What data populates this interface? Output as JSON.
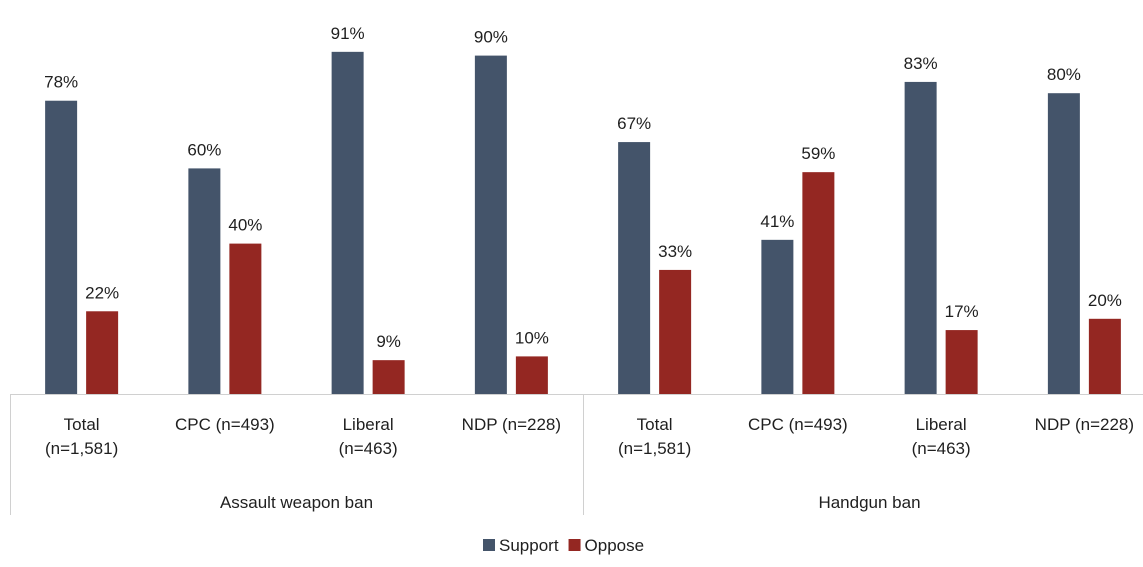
{
  "chart_data": {
    "type": "bar",
    "groups": [
      {
        "name": "Assault weapon ban",
        "categories": [
          {
            "label_lines": [
              "Total",
              "(n=1,581)"
            ],
            "values": [
              78,
              22
            ]
          },
          {
            "label_lines": [
              "CPC (n=493)"
            ],
            "values": [
              60,
              40
            ]
          },
          {
            "label_lines": [
              "Liberal",
              "(n=463)"
            ],
            "values": [
              91,
              9
            ]
          },
          {
            "label_lines": [
              "NDP (n=228)"
            ],
            "values": [
              90,
              10
            ]
          }
        ]
      },
      {
        "name": "Handgun ban",
        "categories": [
          {
            "label_lines": [
              "Total",
              "(n=1,581)"
            ],
            "values": [
              67,
              33
            ]
          },
          {
            "label_lines": [
              "CPC (n=493)"
            ],
            "values": [
              41,
              59
            ]
          },
          {
            "label_lines": [
              "Liberal",
              "(n=463)"
            ],
            "values": [
              83,
              17
            ]
          },
          {
            "label_lines": [
              "NDP (n=228)"
            ],
            "values": [
              80,
              20
            ]
          }
        ]
      }
    ],
    "series": [
      {
        "name": "Support",
        "color": "#44546a"
      },
      {
        "name": "Oppose",
        "color": "#942722"
      }
    ],
    "value_suffix": "%",
    "ylim": [
      0,
      100
    ],
    "grid": false,
    "legend_position": "bottom"
  }
}
